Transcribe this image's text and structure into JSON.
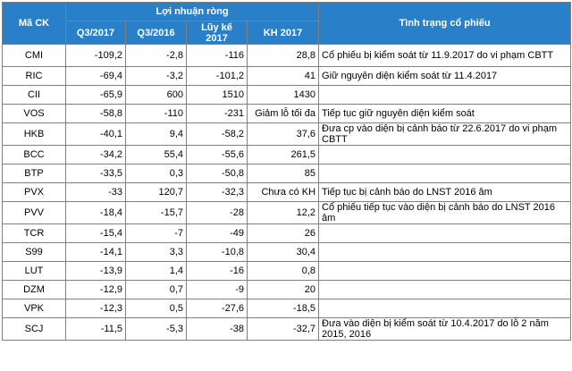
{
  "headers": {
    "code": "Mã CK",
    "group": "Lợi nhuận ròng",
    "q3_2017": "Q3/2017",
    "q3_2016": "Q3/2016",
    "cumulative": "Lũy kế 2017",
    "plan": "KH 2017",
    "status": "Tình trạng cổ phiếu"
  },
  "rows": [
    {
      "code": "CMI",
      "q3_2017": "-109,2",
      "q3_2016": "-2,8",
      "cumulative": "-116",
      "plan": "28,8",
      "status": "Cổ phiếu bị kiểm soát từ 11.9.2017 do vi phạm CBTT"
    },
    {
      "code": "RIC",
      "q3_2017": "-69,4",
      "q3_2016": "-3,2",
      "cumulative": "-101,2",
      "plan": "41",
      "status": "Giữ nguyên diện kiểm soát từ 11.4.2017"
    },
    {
      "code": "CII",
      "q3_2017": "-65,9",
      "q3_2016": "600",
      "cumulative": "1510",
      "plan": "1430",
      "status": ""
    },
    {
      "code": "VOS",
      "q3_2017": "-58,8",
      "q3_2016": "-110",
      "cumulative": "-231",
      "plan": "Giảm lỗ tối đa",
      "status": "Tiếp tục giữ nguyên diện kiểm soát"
    },
    {
      "code": "HKB",
      "q3_2017": "-40,1",
      "q3_2016": "9,4",
      "cumulative": "-58,2",
      "plan": "37,6",
      "status": "Đưa cp vào diện bị cảnh báo từ 22.6.2017 do vi phạm CBTT"
    },
    {
      "code": "BCC",
      "q3_2017": "-34,2",
      "q3_2016": "55,4",
      "cumulative": "-55,6",
      "plan": "261,5",
      "status": ""
    },
    {
      "code": "BTP",
      "q3_2017": "-33,5",
      "q3_2016": "0,3",
      "cumulative": "-50,8",
      "plan": "85",
      "status": ""
    },
    {
      "code": "PVX",
      "q3_2017": "-33",
      "q3_2016": "120,7",
      "cumulative": "-32,3",
      "plan": "Chưa có KH",
      "status": "Tiếp tục bị cảnh báo do LNST 2016 âm"
    },
    {
      "code": "PVV",
      "q3_2017": "-18,4",
      "q3_2016": "-15,7",
      "cumulative": "-28",
      "plan": "12,2",
      "status": "Cổ phiếu tiếp tục vào diện bị cảnh báo do LNST 2016 âm"
    },
    {
      "code": "TCR",
      "q3_2017": "-15,4",
      "q3_2016": "-7",
      "cumulative": "-49",
      "plan": "26",
      "status": ""
    },
    {
      "code": "S99",
      "q3_2017": "-14,1",
      "q3_2016": "3,3",
      "cumulative": "-10,8",
      "plan": "30,4",
      "status": ""
    },
    {
      "code": "LUT",
      "q3_2017": "-13,9",
      "q3_2016": "1,4",
      "cumulative": "-16",
      "plan": "0,8",
      "status": ""
    },
    {
      "code": "DZM",
      "q3_2017": "-12,9",
      "q3_2016": "0,7",
      "cumulative": "-9",
      "plan": "20",
      "status": ""
    },
    {
      "code": "VPK",
      "q3_2017": "-12,3",
      "q3_2016": "0,5",
      "cumulative": "-27,6",
      "plan": "-18,5",
      "status": ""
    },
    {
      "code": "SCJ",
      "q3_2017": "-11,5",
      "q3_2016": "-5,3",
      "cumulative": "-38",
      "plan": "-32,7",
      "status": "Đưa vào diện bị kiểm soát từ 10.4.2017 do lỗ 2 năm 2015, 2016"
    }
  ]
}
